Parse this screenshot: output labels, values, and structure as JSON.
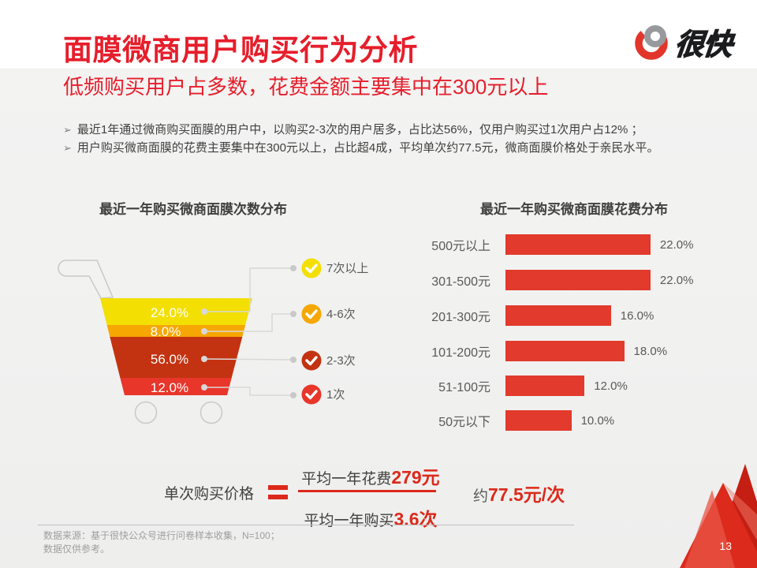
{
  "slide": {
    "title": "面膜微商用户购买行为分析",
    "subtitle": "低频购买用户占多数，花费金额主要集中在300元以上",
    "logo_text": "很快",
    "page_number": "13",
    "bullets": [
      "最近1年通过微商购买面膜的用户中，以购买2-3次的用户居多，占比达56%，仅用户购买过1次用户占12% ；",
      "用户购买微商面膜的花费主要集中在300元以上，占比超4成，平均单次约77.5元，微商面膜价格处于亲民水平。"
    ],
    "footer": {
      "line1": "数据来源：基于很快公众号进行问卷样本收集，N=100；",
      "line2": "数据仅供参考。"
    }
  },
  "colors": {
    "title_red": "#E61E2B",
    "accent_red": "#DC291B",
    "bar_red": "#E23A2C",
    "text_dark": "#3F3F3F",
    "text_gray": "#595959",
    "footer_gray": "#9E9E9E",
    "connector_gray": "#C9C9C9"
  },
  "chart_data": [
    {
      "type": "funnel",
      "title": "最近一年购买微商面膜次数分布",
      "categories": [
        "7次以上",
        "4-6次",
        "2-3次",
        "1次"
      ],
      "values": [
        24.0,
        8.0,
        56.0,
        12.0
      ],
      "value_labels": [
        "24.0%",
        "8.0%",
        "56.0%",
        "12.0%"
      ],
      "colors": [
        "#F3DF02",
        "#F6A702",
        "#C33311",
        "#E8362B"
      ],
      "legend_position": "right"
    },
    {
      "type": "bar",
      "orientation": "horizontal",
      "title": "最近一年购买微商面膜花费分布",
      "categories": [
        "500元以上",
        "301-500元",
        "201-300元",
        "101-200元",
        "51-100元",
        "50元以下"
      ],
      "values": [
        22.0,
        22.0,
        16.0,
        18.0,
        12.0,
        10.0
      ],
      "value_labels": [
        "22.0%",
        "22.0%",
        "16.0%",
        "18.0%",
        "12.0%",
        "10.0%"
      ],
      "bar_color": "#E23A2C",
      "xlim": [
        0,
        24
      ],
      "grid": false
    }
  ],
  "formula": {
    "label": "单次购买价格",
    "equals": "=",
    "numerator_prefix": "平均一年花费",
    "numerator_value": "279元",
    "denominator_prefix": "平均一年购买",
    "denominator_value": "3.6次",
    "result_prefix": "约",
    "result_value": "77.5元/次"
  }
}
